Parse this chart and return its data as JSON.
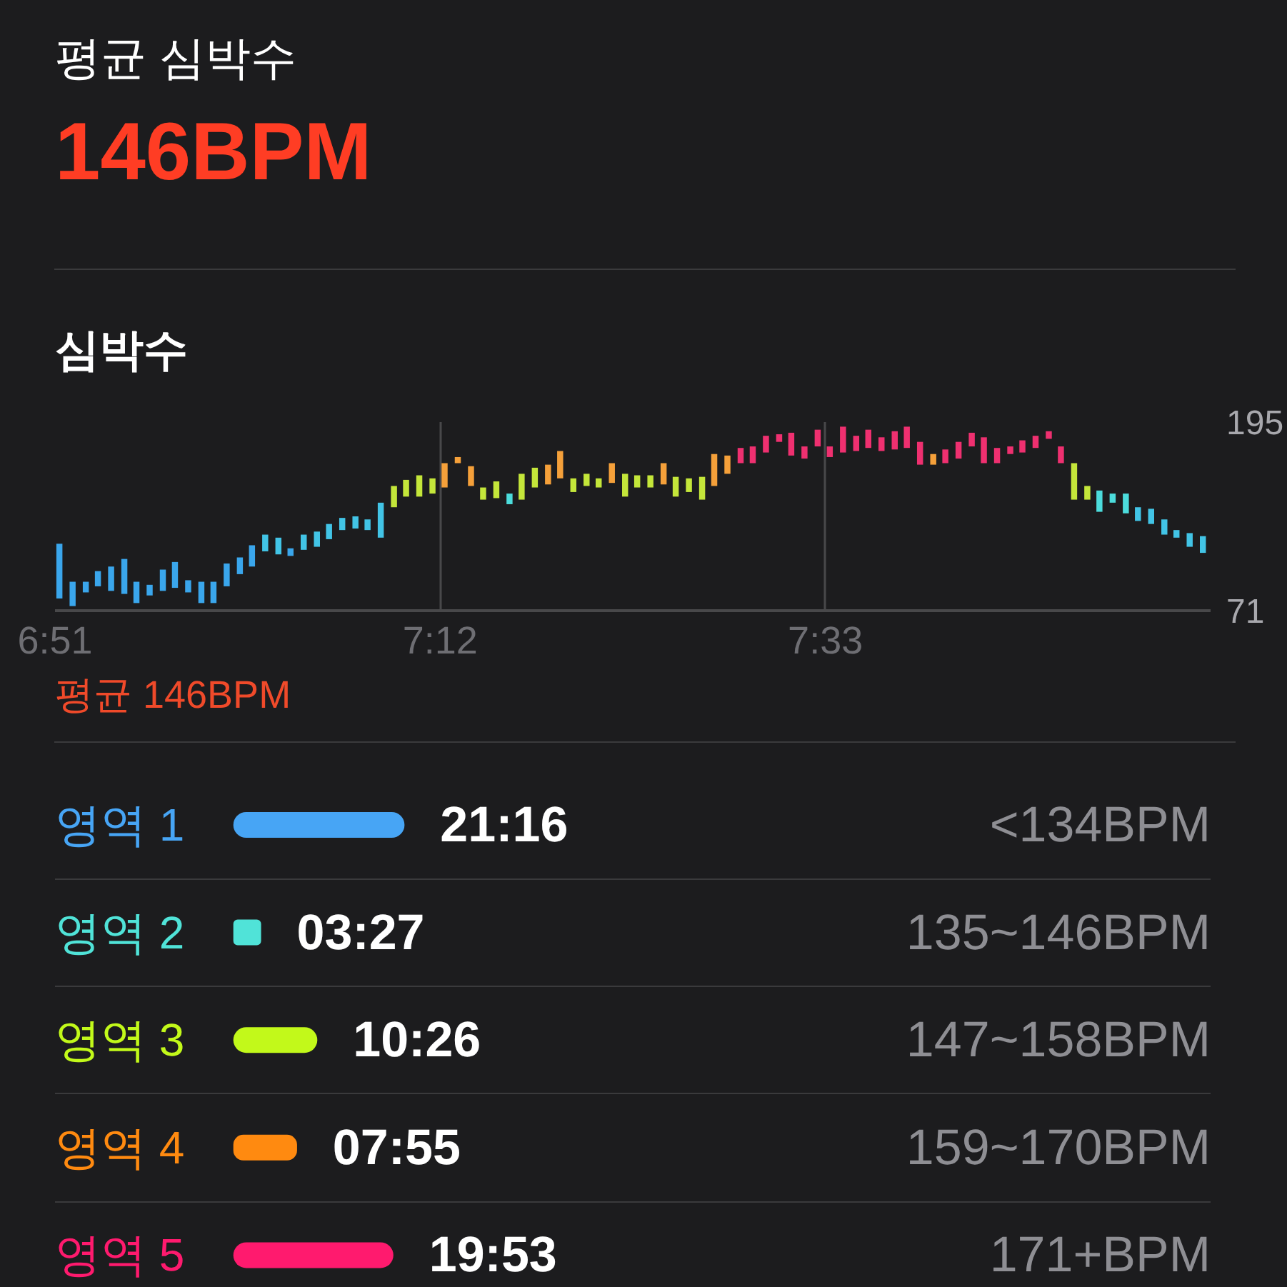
{
  "chart_data": [
    {
      "type": "other",
      "title": "평균 심박수",
      "subtitle": "146BPM"
    },
    {
      "type": "bar",
      "title": "심박수",
      "x": [
        6.854,
        6.866,
        6.878,
        6.889,
        6.901,
        6.913,
        6.924,
        6.936,
        6.948,
        6.959,
        6.971,
        6.983,
        6.994,
        7.006,
        7.018,
        7.029,
        7.041,
        7.053,
        7.064,
        7.076,
        7.088,
        7.099,
        7.111,
        7.123,
        7.134,
        7.146,
        7.158,
        7.169,
        7.181,
        7.193,
        7.204,
        7.216,
        7.228,
        7.239,
        7.251,
        7.263,
        7.274,
        7.286,
        7.298,
        7.309,
        7.321,
        7.333,
        7.344,
        7.356,
        7.368,
        7.379,
        7.391,
        7.403,
        7.414,
        7.426,
        7.438,
        7.449,
        7.461,
        7.473,
        7.484,
        7.496,
        7.508,
        7.519,
        7.531,
        7.543,
        7.554,
        7.566,
        7.578,
        7.589,
        7.601,
        7.613,
        7.624,
        7.636,
        7.648,
        7.659,
        7.671,
        7.683,
        7.694,
        7.706,
        7.718,
        7.729,
        7.741,
        7.753,
        7.764,
        7.776,
        7.788,
        7.799,
        7.811,
        7.823,
        7.834,
        7.846,
        7.858,
        7.869,
        7.881,
        7.893
      ],
      "base": [
        79,
        74,
        83,
        87,
        84,
        82,
        76,
        81,
        84,
        86,
        83,
        76,
        76,
        87,
        95,
        100,
        110,
        108,
        107,
        111,
        113,
        118,
        124,
        125,
        124,
        119,
        139,
        146,
        146,
        148,
        152,
        168,
        153,
        144,
        145,
        141,
        144,
        152,
        154,
        158,
        149,
        153,
        152,
        155,
        146,
        152,
        152,
        154,
        146,
        149,
        144,
        153,
        161,
        168,
        168,
        175,
        182,
        173,
        171,
        179,
        172,
        175,
        176,
        178,
        176,
        177,
        178,
        167,
        167,
        168,
        171,
        179,
        168,
        168,
        174,
        175,
        178,
        184,
        168,
        144,
        144,
        136,
        142,
        135,
        130,
        128,
        121,
        119,
        113,
        109
      ],
      "values": [
        36,
        16,
        7,
        10,
        16,
        23,
        14,
        7,
        14,
        17,
        8,
        14,
        14,
        15,
        11,
        14,
        11,
        11,
        5,
        10,
        10,
        10,
        8,
        8,
        7,
        23,
        14,
        11,
        14,
        10,
        16,
        4,
        13,
        8,
        11,
        7,
        17,
        13,
        13,
        18,
        9,
        8,
        6,
        13,
        15,
        8,
        8,
        14,
        13,
        9,
        15,
        21,
        12,
        10,
        11,
        11,
        5,
        15,
        8,
        11,
        7,
        17,
        10,
        12,
        9,
        12,
        14,
        15,
        7,
        9,
        11,
        9,
        17,
        10,
        5,
        8,
        8,
        5,
        11,
        24,
        9,
        14,
        6,
        13,
        9,
        10,
        10,
        5,
        9,
        11
      ],
      "colors": [
        "#3aa6ec",
        "#3aa6ec",
        "#3aa6ec",
        "#3aa6ec",
        "#3aa6ec",
        "#3aa6ec",
        "#3aa6ec",
        "#3aa6ec",
        "#3aa6ec",
        "#3aa6ec",
        "#3aa6ec",
        "#3aa6ec",
        "#3aa6ec",
        "#3aa6ec",
        "#3aa6ec",
        "#3aa6ec",
        "#42c4e6",
        "#42c4e6",
        "#3aa6ec",
        "#42c4e6",
        "#42c4e6",
        "#42c4e6",
        "#42c4e6",
        "#42c4e6",
        "#42c4e6",
        "#42c4e6",
        "#c4e63a",
        "#c4e63a",
        "#c4e63a",
        "#c4e63a",
        "#f5a03a",
        "#f5a03a",
        "#f5a03a",
        "#c4e63a",
        "#c4e63a",
        "#4cdcdc",
        "#c4e63a",
        "#c4e63a",
        "#f5a03a",
        "#f5a03a",
        "#c4e63a",
        "#c4e63a",
        "#c4e63a",
        "#f5a03a",
        "#c4e63a",
        "#c4e63a",
        "#c4e63a",
        "#f5a03a",
        "#c4e63a",
        "#c4e63a",
        "#c4e63a",
        "#f5a03a",
        "#f5a03a",
        "#ef3070",
        "#ef3070",
        "#ef3070",
        "#ef3070",
        "#ef3070",
        "#ef3070",
        "#ef3070",
        "#ef3070",
        "#ef3070",
        "#ef3070",
        "#ef3070",
        "#ef3070",
        "#ef3070",
        "#ef3070",
        "#ef3070",
        "#f5a03a",
        "#ef3070",
        "#ef3070",
        "#ef3070",
        "#ef3070",
        "#ef3070",
        "#ef3070",
        "#ef3070",
        "#ef3070",
        "#ef3070",
        "#ef3070",
        "#c4e63a",
        "#c4e63a",
        "#4cdcdc",
        "#4cdcdc",
        "#4cdcdc",
        "#42c4e6",
        "#42c4e6",
        "#42c4e6",
        "#42c4e6",
        "#42c4e6",
        "#42c4e6"
      ],
      "xlim": [
        6.85,
        7.9
      ],
      "xticks": [
        {
          "value": 6.85,
          "label": "6:51"
        },
        {
          "value": 7.2,
          "label": "7:12"
        },
        {
          "value": 7.55,
          "label": "7:33"
        }
      ],
      "ylim": [
        71,
        195
      ],
      "yticks": [
        71,
        195
      ],
      "grid": "x",
      "annotations": [
        "평균 146BPM"
      ]
    },
    {
      "type": "bar",
      "orientation": "horizontal",
      "categories": [
        "영역 1",
        "영역 2",
        "영역 3",
        "영역 4",
        "영역 5"
      ],
      "values": [
        21.267,
        3.45,
        10.433,
        7.917,
        19.883
      ],
      "value_labels": [
        "21:16",
        "03:27",
        "10:26",
        "07:55",
        "19:53"
      ],
      "colors": [
        "#47a5f5",
        "#50e3d8",
        "#c2f91a",
        "#ff8a10",
        "#ff1a6e"
      ],
      "annotations": [
        "<134BPM",
        "135~146BPM",
        "147~158BPM",
        "159~170BPM",
        "171+BPM"
      ],
      "grid": "y"
    }
  ]
}
